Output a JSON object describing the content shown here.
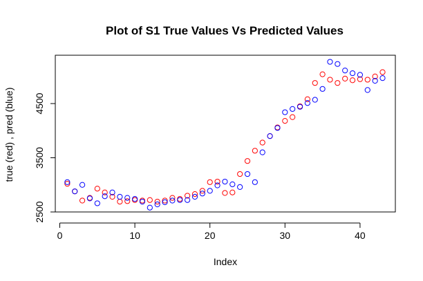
{
  "chart_data": {
    "type": "scatter",
    "title": "Plot of S1 True Values Vs Predicted Values",
    "xlabel": "Index",
    "ylabel": "true (red) , pred (blue)",
    "xlim": [
      0,
      43
    ],
    "ylim": [
      2500,
      5000
    ],
    "xticks": [
      0,
      10,
      20,
      30,
      40
    ],
    "yticks": [
      2500,
      3500,
      4500
    ],
    "grid": false,
    "legend": "none",
    "series": [
      {
        "color": "#ff0000",
        "x": [
          1,
          2,
          3,
          4,
          5,
          6,
          7,
          8,
          9,
          10,
          11,
          12,
          13,
          14,
          15,
          16,
          17,
          18,
          19,
          20,
          21,
          22,
          23,
          24,
          25,
          26,
          27,
          28,
          29,
          30,
          31,
          32,
          33,
          34,
          35,
          36,
          37,
          38,
          39,
          40,
          41,
          42,
          43
        ],
        "y": [
          3020,
          2880,
          2710,
          2760,
          2930,
          2860,
          2780,
          2690,
          2700,
          2720,
          2710,
          2720,
          2690,
          2710,
          2760,
          2740,
          2800,
          2830,
          2890,
          3050,
          3060,
          2850,
          2860,
          3200,
          3440,
          3630,
          3780,
          3900,
          4060,
          4180,
          4250,
          4450,
          4580,
          4880,
          5040,
          4940,
          4880,
          4960,
          4930,
          4950,
          4940,
          5000,
          5080
        ]
      },
      {
        "color": "#0000ff",
        "x": [
          1,
          2,
          3,
          4,
          5,
          6,
          7,
          8,
          9,
          10,
          11,
          12,
          13,
          14,
          15,
          16,
          17,
          18,
          19,
          20,
          21,
          22,
          23,
          24,
          25,
          26,
          27,
          28,
          29,
          30,
          31,
          32,
          33,
          34,
          35,
          36,
          37,
          38,
          39,
          40,
          41,
          42,
          43
        ],
        "y": [
          3050,
          2880,
          3000,
          2750,
          2660,
          2790,
          2860,
          2780,
          2760,
          2740,
          2690,
          2580,
          2640,
          2680,
          2710,
          2720,
          2720,
          2780,
          2840,
          2890,
          2990,
          3060,
          3010,
          2960,
          3200,
          3050,
          3600,
          3900,
          4050,
          4340,
          4400,
          4440,
          4510,
          4570,
          4770,
          5270,
          5230,
          5110,
          5060,
          5030,
          4750,
          4920,
          4970
        ]
      }
    ]
  }
}
